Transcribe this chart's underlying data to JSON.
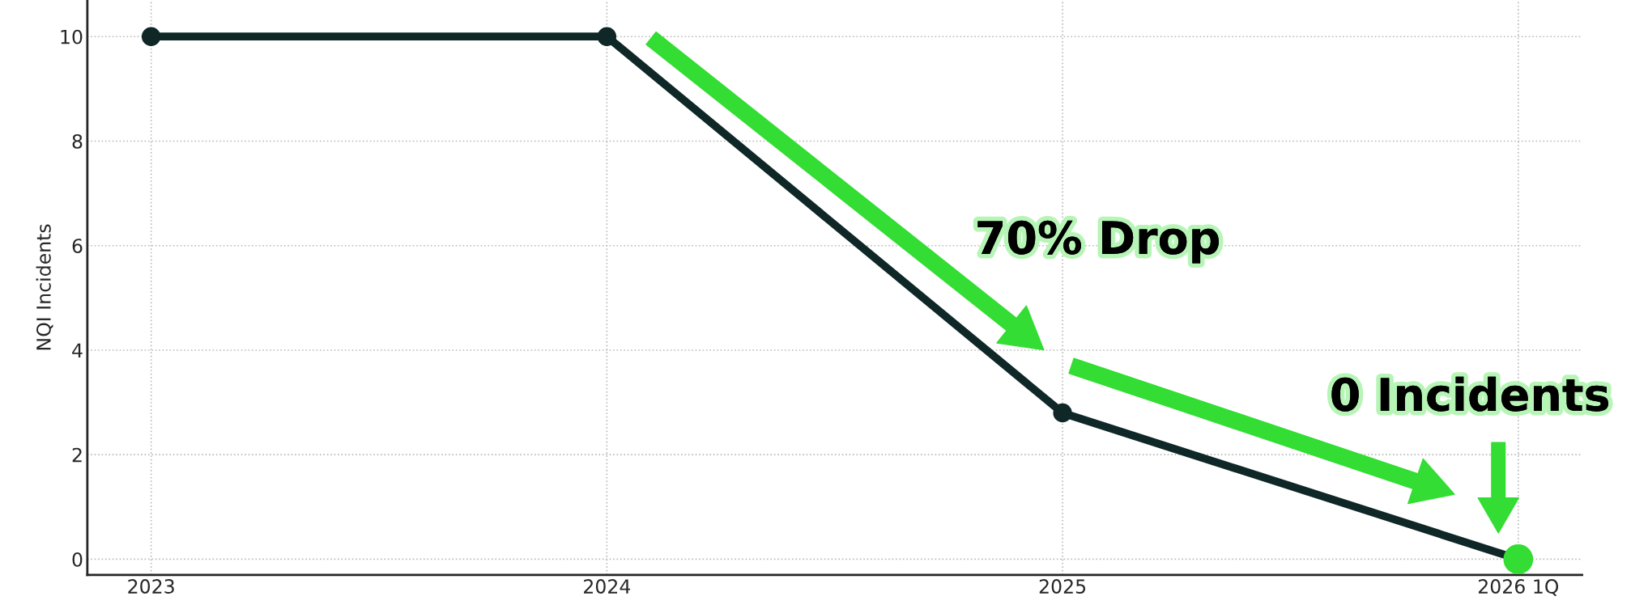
{
  "chart_data": {
    "type": "line",
    "ylabel": "NQI Incidents",
    "categories": [
      "2023",
      "2024",
      "2025",
      "2026 1Q"
    ],
    "series": [
      {
        "color": "#0f2727",
        "colors": [
          "#0f2727",
          "#0f2727",
          "#0f2727",
          "#33dd33"
        ],
        "values": [
          10,
          10,
          2.8,
          0
        ]
      }
    ],
    "ylim": [
      -0.3,
      10.7
    ],
    "yticks": [
      0,
      2,
      4,
      6,
      8,
      10
    ],
    "annotations": [
      "70% Drop",
      "0 Incidents"
    ],
    "grid": true,
    "marker": "circle",
    "line_style": "solid",
    "legend": false
  }
}
